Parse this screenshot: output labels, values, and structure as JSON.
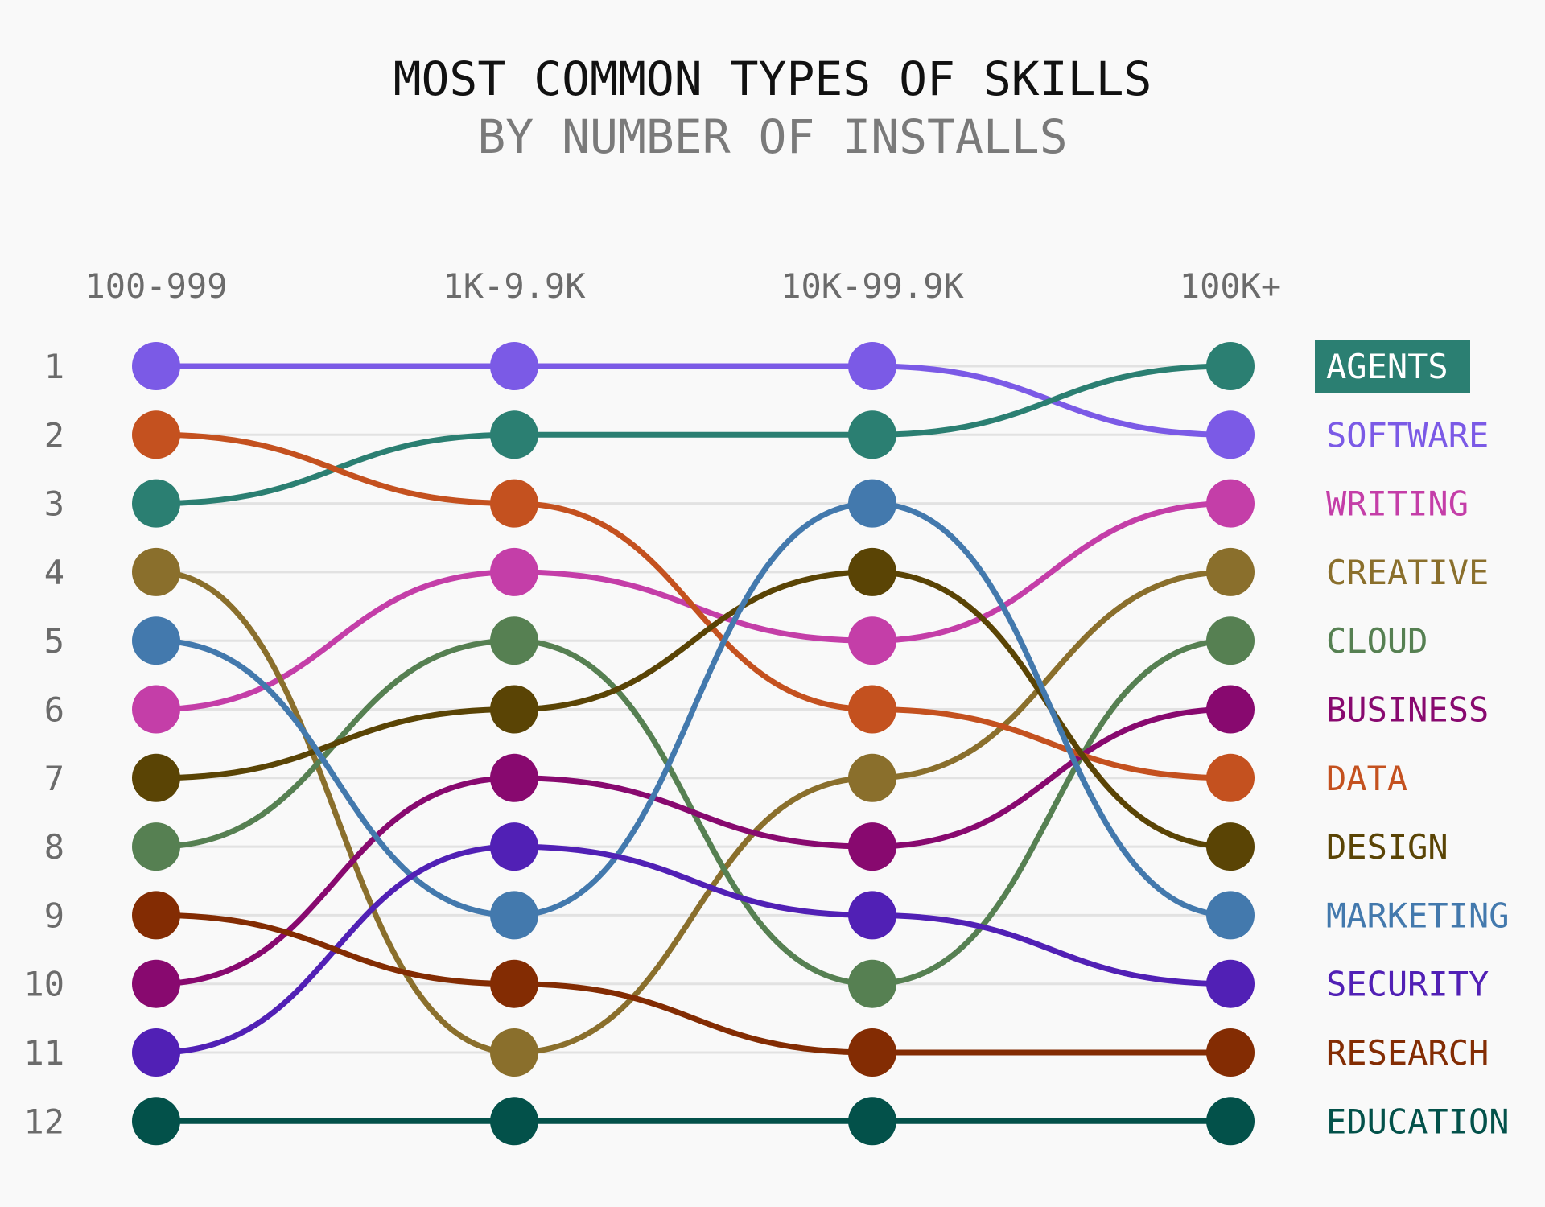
{
  "chart_data": {
    "type": "line",
    "subtype": "bump",
    "title": "MOST COMMON TYPES OF SKILLS",
    "subtitle": "BY NUMBER OF INSTALLS",
    "categories": [
      "100-999",
      "1K-9.9K",
      "10K-99.9K",
      "100K+"
    ],
    "ranks": [
      "1",
      "2",
      "3",
      "4",
      "5",
      "6",
      "7",
      "8",
      "9",
      "10",
      "11",
      "12"
    ],
    "y_axis": {
      "reversed": true,
      "min": 1,
      "max": 12
    },
    "highlight": "AGENTS",
    "grid": true,
    "legend": "right, end-of-line labels",
    "series": [
      {
        "name": "SOFTWARE",
        "color": "#7b5ae6",
        "values": [
          1,
          1,
          1,
          2
        ]
      },
      {
        "name": "AGENTS",
        "color": "#2b7f72",
        "values": [
          3,
          2,
          2,
          1
        ]
      },
      {
        "name": "WRITING",
        "color": "#c43ea8",
        "values": [
          6,
          4,
          5,
          3
        ]
      },
      {
        "name": "CREATIVE",
        "color": "#8a6f2c",
        "values": [
          4,
          11,
          7,
          4
        ]
      },
      {
        "name": "CLOUD",
        "color": "#568052",
        "values": [
          8,
          5,
          10,
          5
        ]
      },
      {
        "name": "BUSINESS",
        "color": "#88096f",
        "values": [
          10,
          7,
          8,
          6
        ]
      },
      {
        "name": "DATA",
        "color": "#c4511f",
        "values": [
          2,
          3,
          6,
          7
        ]
      },
      {
        "name": "DESIGN",
        "color": "#5a4405",
        "values": [
          7,
          6,
          4,
          8
        ]
      },
      {
        "name": "MARKETING",
        "color": "#4379ad",
        "values": [
          5,
          9,
          3,
          9
        ]
      },
      {
        "name": "SECURITY",
        "color": "#5120b5",
        "values": [
          11,
          8,
          9,
          10
        ]
      },
      {
        "name": "RESEARCH",
        "color": "#832c03",
        "values": [
          9,
          10,
          11,
          11
        ]
      },
      {
        "name": "EDUCATION",
        "color": "#03514a",
        "values": [
          12,
          12,
          12,
          12
        ]
      }
    ]
  }
}
